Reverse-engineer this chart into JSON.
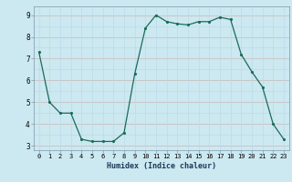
{
  "x": [
    0,
    1,
    2,
    3,
    4,
    5,
    6,
    7,
    8,
    9,
    10,
    11,
    12,
    13,
    14,
    15,
    16,
    17,
    18,
    19,
    20,
    21,
    22,
    23
  ],
  "y": [
    7.3,
    5.0,
    4.5,
    4.5,
    3.3,
    3.2,
    3.2,
    3.2,
    3.6,
    6.3,
    8.4,
    9.0,
    8.7,
    8.6,
    8.55,
    8.7,
    8.7,
    8.9,
    8.8,
    7.2,
    6.4,
    5.7,
    4.0,
    3.3
  ],
  "xlabel": "Humidex (Indice chaleur)",
  "xlim": [
    -0.5,
    23.5
  ],
  "ylim": [
    2.8,
    9.4
  ],
  "yticks": [
    3,
    4,
    5,
    6,
    7,
    8,
    9
  ],
  "xticks": [
    0,
    1,
    2,
    3,
    4,
    5,
    6,
    7,
    8,
    9,
    10,
    11,
    12,
    13,
    14,
    15,
    16,
    17,
    18,
    19,
    20,
    21,
    22,
    23
  ],
  "line_color": "#1a6b5a",
  "marker_color": "#1a6b5a",
  "bg_color": "#cce8f0",
  "grid_color_minor": "#b8d8e8",
  "grid_color_major": "#c8b8b8"
}
